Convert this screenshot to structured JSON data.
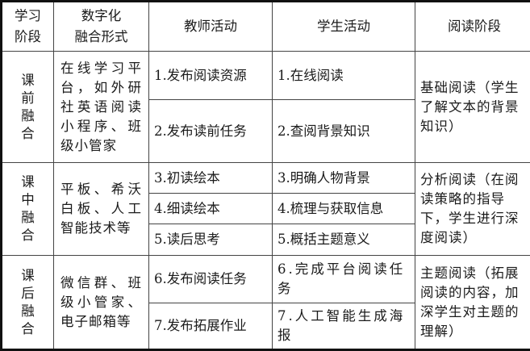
{
  "headers": [
    "学习阶段",
    "数字化融合形式",
    "教师活动",
    "学生活动",
    "阅读阶段"
  ],
  "header_lines": {
    "stage": [
      "学习",
      "阶段"
    ],
    "form": [
      "数字化",
      "融合形式"
    ]
  },
  "groups": [
    {
      "stage": "课前融合",
      "form": "在线学习平台，如外研社英语阅读小程序、班级小管家",
      "reading": "基础阅读（学生了解文本的背景知识）",
      "rows": [
        {
          "teacher": "1.发布阅读资源",
          "student": "1.在线阅读"
        },
        {
          "teacher": "2.发布读前任务",
          "student": "2.查阅背景知识"
        }
      ]
    },
    {
      "stage": "课中融合",
      "form": "平板、希沃白板、人工智能技术等",
      "reading": "分析阅读（在阅读策略的指导下，学生进行深度阅读）",
      "rows": [
        {
          "teacher": "3.初读绘本",
          "student": "3.明确人物背景"
        },
        {
          "teacher": "4.细读绘本",
          "student": "4.梳理与获取信息"
        },
        {
          "teacher": "5.读后思考",
          "student": "5.概括主题意义"
        }
      ]
    },
    {
      "stage": "课后融合",
      "form": "微信群、班级小管家、电子邮箱等",
      "reading": "主题阅读（拓展阅读的内容，加深学生对主题的理解）",
      "rows": [
        {
          "teacher": "6.发布阅读任务",
          "student": "6.完成平台阅读任务"
        },
        {
          "teacher": "7.发布拓展作业",
          "student": "7.人工智能生成海报"
        }
      ]
    }
  ]
}
